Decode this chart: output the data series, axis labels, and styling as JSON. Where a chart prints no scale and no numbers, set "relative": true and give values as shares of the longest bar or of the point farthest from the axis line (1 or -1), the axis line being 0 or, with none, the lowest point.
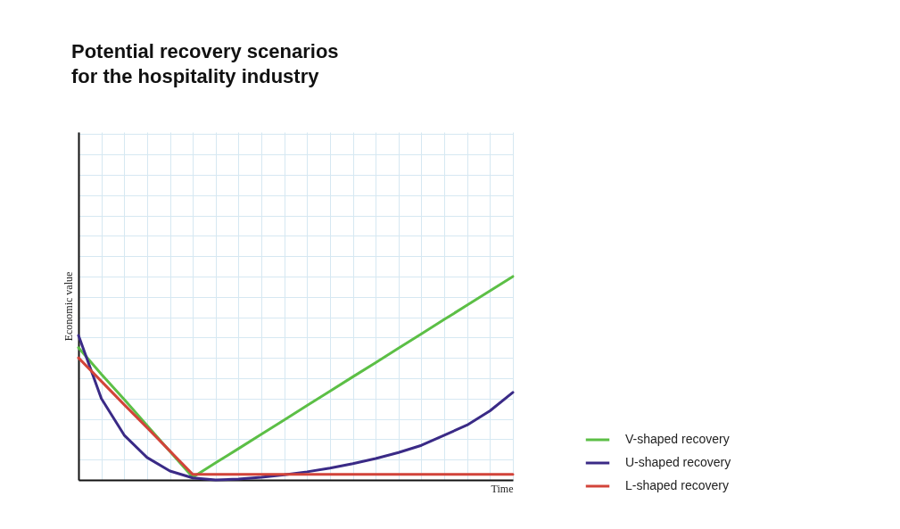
{
  "chart_data": {
    "type": "line",
    "title": "Potential recovery scenarios\nfor the hospitality industry",
    "xlabel": "Time",
    "ylabel": "Economic value",
    "relative": true,
    "grid": true,
    "legend": "bottom right",
    "categories": [
      null,
      null,
      null,
      null,
      null,
      null,
      null,
      null,
      null,
      null,
      null,
      null,
      null,
      null,
      null,
      null,
      null,
      null,
      null,
      null
    ],
    "series": [
      {
        "name": "V-shaped recovery",
        "color": "#5cbf46",
        "values": [
          0.65,
          0.52,
          0.396,
          0.268,
          0.14,
          0.013,
          0.084,
          0.154,
          0.225,
          0.295,
          0.366,
          0.436,
          0.507,
          0.577,
          0.648,
          0.718,
          0.789,
          0.859,
          0.93,
          1
        ]
      },
      {
        "name": "U-shaped recovery",
        "color": "#3a2a86",
        "values": [
          0.71,
          0.4,
          0.22,
          0.11,
          0.044,
          0.01,
          0,
          0.004,
          0.013,
          0.025,
          0.04,
          0.058,
          0.08,
          0.105,
          0.135,
          0.17,
          0.22,
          0.27,
          0.34,
          0.43
        ]
      },
      {
        "name": "L-shaped recovery",
        "color": "#d2443a",
        "values": [
          0.6,
          0.485,
          0.37,
          0.257,
          0.142,
          0.027,
          0.027,
          0.027,
          0.027,
          0.027,
          0.027,
          0.027,
          0.027,
          0.027,
          0.027,
          0.027,
          0.027,
          0.027,
          0.027,
          0.027
        ]
      }
    ]
  }
}
